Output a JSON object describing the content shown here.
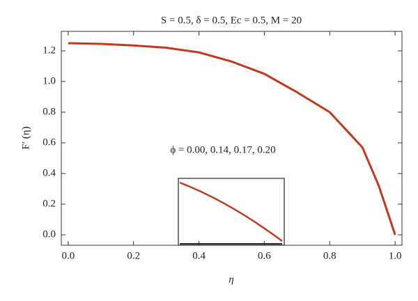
{
  "chart_data": {
    "type": "line",
    "title": "S = 0.5, δ = 0.5, Ec = 0.5, M = 20",
    "x_label": "η",
    "y_label": "F′ (η)",
    "annotation": "ϕ = 0.00, 0.14, 0.17, 0.20",
    "x": [
      0,
      0.1,
      0.2,
      0.3,
      0.4,
      0.5,
      0.6,
      0.7,
      0.8,
      0.9,
      0.95,
      1.0
    ],
    "series": [
      {
        "color": "#c0391b",
        "values": [
          1.25,
          1.245,
          1.235,
          1.22,
          1.19,
          1.13,
          1.05,
          0.93,
          0.8,
          0.57,
          0.32,
          0
        ]
      }
    ],
    "xlim": [
      -0.021,
      1.021
    ],
    "ylim": [
      -0.068,
      1.327
    ],
    "xticks": [
      {
        "value": 0,
        "label": "0.0"
      },
      {
        "value": 0.2,
        "label": "0.2"
      },
      {
        "value": 0.4,
        "label": "0.4"
      },
      {
        "value": 0.6,
        "label": "0.6"
      },
      {
        "value": 0.8,
        "label": "0.8"
      },
      {
        "value": 1.0,
        "label": "1.0"
      }
    ],
    "yticks": [
      {
        "value": 0,
        "label": "0.0"
      },
      {
        "value": 0.2,
        "label": "0.2"
      },
      {
        "value": 0.4,
        "label": "0.4"
      },
      {
        "value": 0.6,
        "label": "0.6"
      },
      {
        "value": 0.8,
        "label": "0.8"
      },
      {
        "value": 1.0,
        "label": "1.0"
      },
      {
        "value": 1.2,
        "label": "1.2"
      }
    ]
  }
}
